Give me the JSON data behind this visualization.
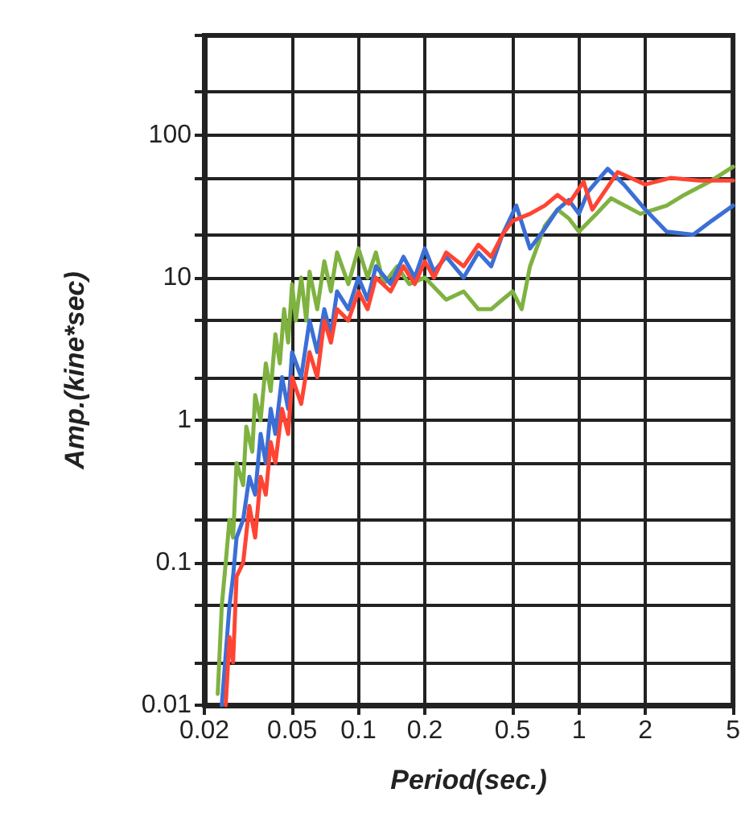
{
  "chart_data": {
    "type": "line",
    "xlabel": "Period(sec.)",
    "ylabel": "Amp.(kine*sec)",
    "log": "xy",
    "grid": true,
    "marker": "none",
    "line_style": "solid",
    "xlim": [
      0.02,
      5
    ],
    "xticks": [
      0.02,
      0.05,
      0.1,
      0.2,
      0.5,
      1,
      2,
      5
    ],
    "ylim": [
      0.01,
      500
    ],
    "yticks": [
      0.01,
      {
        "value": 0.02,
        "label": null
      },
      {
        "value": 0.05,
        "label": null
      },
      0.1,
      {
        "value": 0.2,
        "label": null
      },
      {
        "value": 0.5,
        "label": null
      },
      1,
      {
        "value": 2,
        "label": null
      },
      {
        "value": 5,
        "label": null
      },
      10,
      {
        "value": 20,
        "label": null
      },
      {
        "value": 50,
        "label": null
      },
      100,
      {
        "value": 200,
        "label": null
      },
      {
        "value": 500,
        "label": null
      }
    ],
    "series": [
      {
        "color": "#7fb241",
        "x": [
          0.023,
          0.024,
          0.025,
          0.026,
          0.027,
          0.028,
          0.03,
          0.031,
          0.033,
          0.034,
          0.036,
          0.038,
          0.04,
          0.042,
          0.044,
          0.046,
          0.048,
          0.05,
          0.052,
          0.055,
          0.058,
          0.06,
          0.065,
          0.07,
          0.075,
          0.08,
          0.09,
          0.1,
          0.11,
          0.12,
          0.13,
          0.15,
          0.17,
          0.2,
          0.25,
          0.3,
          0.35,
          0.4,
          0.45,
          0.5,
          0.55,
          0.6,
          0.7,
          0.8,
          0.9,
          1.0,
          1.2,
          1.4,
          1.9,
          2.5,
          3,
          4,
          5
        ],
        "values": [
          0.012,
          0.05,
          0.1,
          0.2,
          0.15,
          0.5,
          0.35,
          0.9,
          0.6,
          1.5,
          1,
          2.5,
          1.6,
          4,
          2.5,
          6,
          3.5,
          9,
          5,
          10,
          5,
          11,
          6,
          13,
          8,
          15,
          9,
          16,
          10,
          15,
          9,
          12,
          9,
          10,
          7,
          8,
          6,
          6,
          7,
          8,
          6,
          12,
          23,
          30,
          26,
          21,
          28,
          36,
          28,
          32,
          38,
          48,
          60
        ]
      },
      {
        "color": "#3b6fd6",
        "x": [
          0.024,
          0.026,
          0.027,
          0.028,
          0.03,
          0.032,
          0.034,
          0.036,
          0.038,
          0.04,
          0.042,
          0.045,
          0.048,
          0.05,
          0.055,
          0.06,
          0.065,
          0.07,
          0.075,
          0.08,
          0.09,
          0.1,
          0.11,
          0.12,
          0.14,
          0.16,
          0.18,
          0.2,
          0.22,
          0.25,
          0.3,
          0.35,
          0.4,
          0.45,
          0.52,
          0.6,
          0.7,
          0.8,
          0.9,
          1.0,
          1.1,
          1.35,
          1.6,
          2,
          2.5,
          3.3,
          4,
          5
        ],
        "values": [
          0.01,
          0.05,
          0.08,
          0.15,
          0.2,
          0.4,
          0.3,
          0.8,
          0.5,
          1.2,
          0.8,
          2,
          1.2,
          3,
          2,
          5,
          3,
          6,
          4,
          8,
          6,
          10,
          7,
          12,
          9,
          14,
          10,
          16,
          11,
          14,
          10,
          15,
          12,
          20,
          32,
          16,
          22,
          30,
          35,
          28,
          40,
          58,
          45,
          30,
          21,
          20,
          25,
          32
        ]
      },
      {
        "color": "#ff4433",
        "x": [
          0.025,
          0.026,
          0.027,
          0.028,
          0.03,
          0.032,
          0.034,
          0.036,
          0.038,
          0.04,
          0.042,
          0.045,
          0.048,
          0.05,
          0.055,
          0.06,
          0.065,
          0.07,
          0.075,
          0.08,
          0.09,
          0.1,
          0.11,
          0.12,
          0.14,
          0.16,
          0.18,
          0.2,
          0.22,
          0.25,
          0.3,
          0.35,
          0.4,
          0.45,
          0.5,
          0.6,
          0.7,
          0.8,
          0.9,
          1.05,
          1.15,
          1.5,
          2,
          2.6,
          3.5,
          5
        ],
        "values": [
          0.01,
          0.03,
          0.02,
          0.08,
          0.1,
          0.25,
          0.15,
          0.4,
          0.3,
          0.7,
          0.5,
          1.2,
          0.8,
          2,
          1.3,
          3,
          2,
          5,
          3.5,
          6,
          5,
          8,
          6,
          10,
          8,
          12,
          9,
          13,
          10,
          15,
          12,
          17,
          14,
          20,
          25,
          28,
          32,
          38,
          33,
          47,
          30,
          55,
          45,
          50,
          48,
          48
        ]
      }
    ]
  }
}
